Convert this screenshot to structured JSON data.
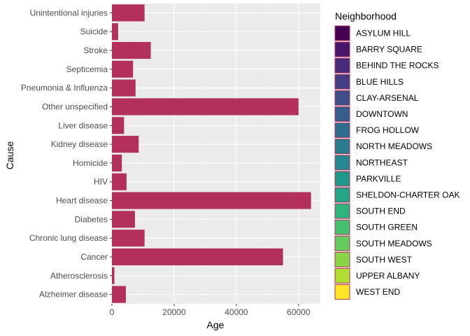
{
  "chart_data": {
    "type": "bar",
    "orientation": "horizontal",
    "xlabel": "Age",
    "ylabel": "Cause",
    "xlim": [
      0,
      67000
    ],
    "xticks": [
      0,
      20000,
      40000,
      60000
    ],
    "xtick_labels": [
      "0",
      "20000",
      "40000",
      "60000"
    ],
    "grid": true,
    "legend_placement": "right",
    "bar_color": "#B3305C",
    "categories": [
      "Unintentional injuries",
      "Suicide",
      "Stroke",
      "Septicemia",
      "Pneumonia & Influenza",
      "Other unspecified",
      "Liver disease",
      "Kidney disease",
      "Homicide",
      "HIV",
      "Heart disease",
      "Diabetes",
      "Chronic lung disease",
      "Cancer",
      "Atherosclerosis",
      "Alzheimer disease"
    ],
    "values": [
      10500,
      2000,
      12500,
      6800,
      7600,
      60000,
      3900,
      8600,
      3200,
      4700,
      64000,
      7400,
      10500,
      55000,
      800,
      4500
    ],
    "legend": {
      "title": "Neighborhood",
      "items": [
        {
          "label": "ASYLUM HILL",
          "color": "#440154"
        },
        {
          "label": "BARRY SQUARE",
          "color": "#481769"
        },
        {
          "label": "BEHIND THE ROCKS",
          "color": "#472A7A"
        },
        {
          "label": "BLUE HILLS",
          "color": "#433D84"
        },
        {
          "label": "CLAY-ARSENAL",
          "color": "#3D4E8A"
        },
        {
          "label": "DOWNTOWN",
          "color": "#355E8D"
        },
        {
          "label": "FROG HOLLOW",
          "color": "#2E6D8E"
        },
        {
          "label": "NORTH MEADOWS",
          "color": "#297B8E"
        },
        {
          "label": "NORTHEAST",
          "color": "#23898E"
        },
        {
          "label": "PARKVILLE",
          "color": "#1F978B"
        },
        {
          "label": "SHELDON-CHARTER OAK",
          "color": "#21A585"
        },
        {
          "label": "SOUTH END",
          "color": "#2EB37C"
        },
        {
          "label": "SOUTH GREEN",
          "color": "#46C06F"
        },
        {
          "label": "SOUTH MEADOWS",
          "color": "#65CB5E"
        },
        {
          "label": "SOUTH WEST",
          "color": "#89D548"
        },
        {
          "label": "UPPER ALBANY",
          "color": "#B0DD2F"
        },
        {
          "label": "WEST END",
          "color": "#FDE725"
        }
      ]
    }
  }
}
